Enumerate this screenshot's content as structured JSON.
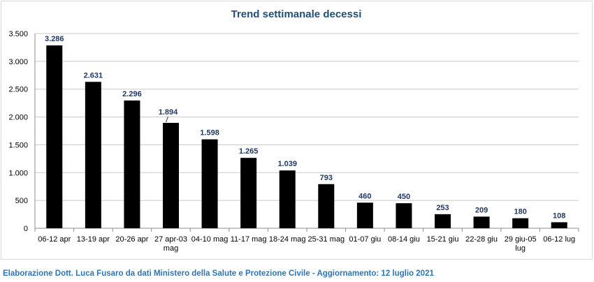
{
  "chart_data": {
    "type": "bar",
    "title": "Trend settimanale decessi",
    "xlabel": "",
    "ylabel": "",
    "categories": [
      "06-12 apr",
      "13-19 apr",
      "20-26 apr",
      "27 apr-03 mag",
      "04-10 mag",
      "11-17 mag",
      "18-24 mag",
      "25-31 mag",
      "01-07 giu",
      "08-14 giu",
      "15-21 giu",
      "22-28 giu",
      "29 giu-05 lug",
      "06-12 lug"
    ],
    "category_lines": [
      [
        "06-12 apr"
      ],
      [
        "13-19 apr"
      ],
      [
        "20-26 apr"
      ],
      [
        "27 apr-03",
        "mag"
      ],
      [
        "04-10 mag"
      ],
      [
        "11-17 mag"
      ],
      [
        "18-24 mag"
      ],
      [
        "25-31 mag"
      ],
      [
        "01-07 giu"
      ],
      [
        "08-14 giu"
      ],
      [
        "15-21 giu"
      ],
      [
        "22-28 giu"
      ],
      [
        "29 giu-05",
        "lug"
      ],
      [
        "06-12 lug"
      ]
    ],
    "values": [
      3286,
      2631,
      2296,
      1894,
      1598,
      1265,
      1039,
      793,
      460,
      450,
      253,
      209,
      180,
      108
    ],
    "data_labels": [
      "3.286",
      "2.631",
      "2.296",
      "1.894",
      "1.598",
      "1.265",
      "1.039",
      "793",
      "460",
      "450",
      "253",
      "209",
      "180",
      "108"
    ],
    "ylim": [
      0,
      3500
    ],
    "yticks": [
      0,
      500,
      1000,
      1500,
      2000,
      2500,
      3000,
      3500
    ],
    "ytick_labels": [
      "0",
      "500",
      "1.000",
      "1.500",
      "2.000",
      "2.500",
      "3.000",
      "3.500"
    ],
    "grid": true,
    "legend": "none",
    "bar_color": "#000000",
    "label_color": "#1f3864",
    "title_color": "#1f4e79"
  },
  "footer": "Elaborazione Dott. Luca Fusaro da dati Ministero della Salute e Protezione Civile - Aggiornamento: 12 luglio 2021"
}
